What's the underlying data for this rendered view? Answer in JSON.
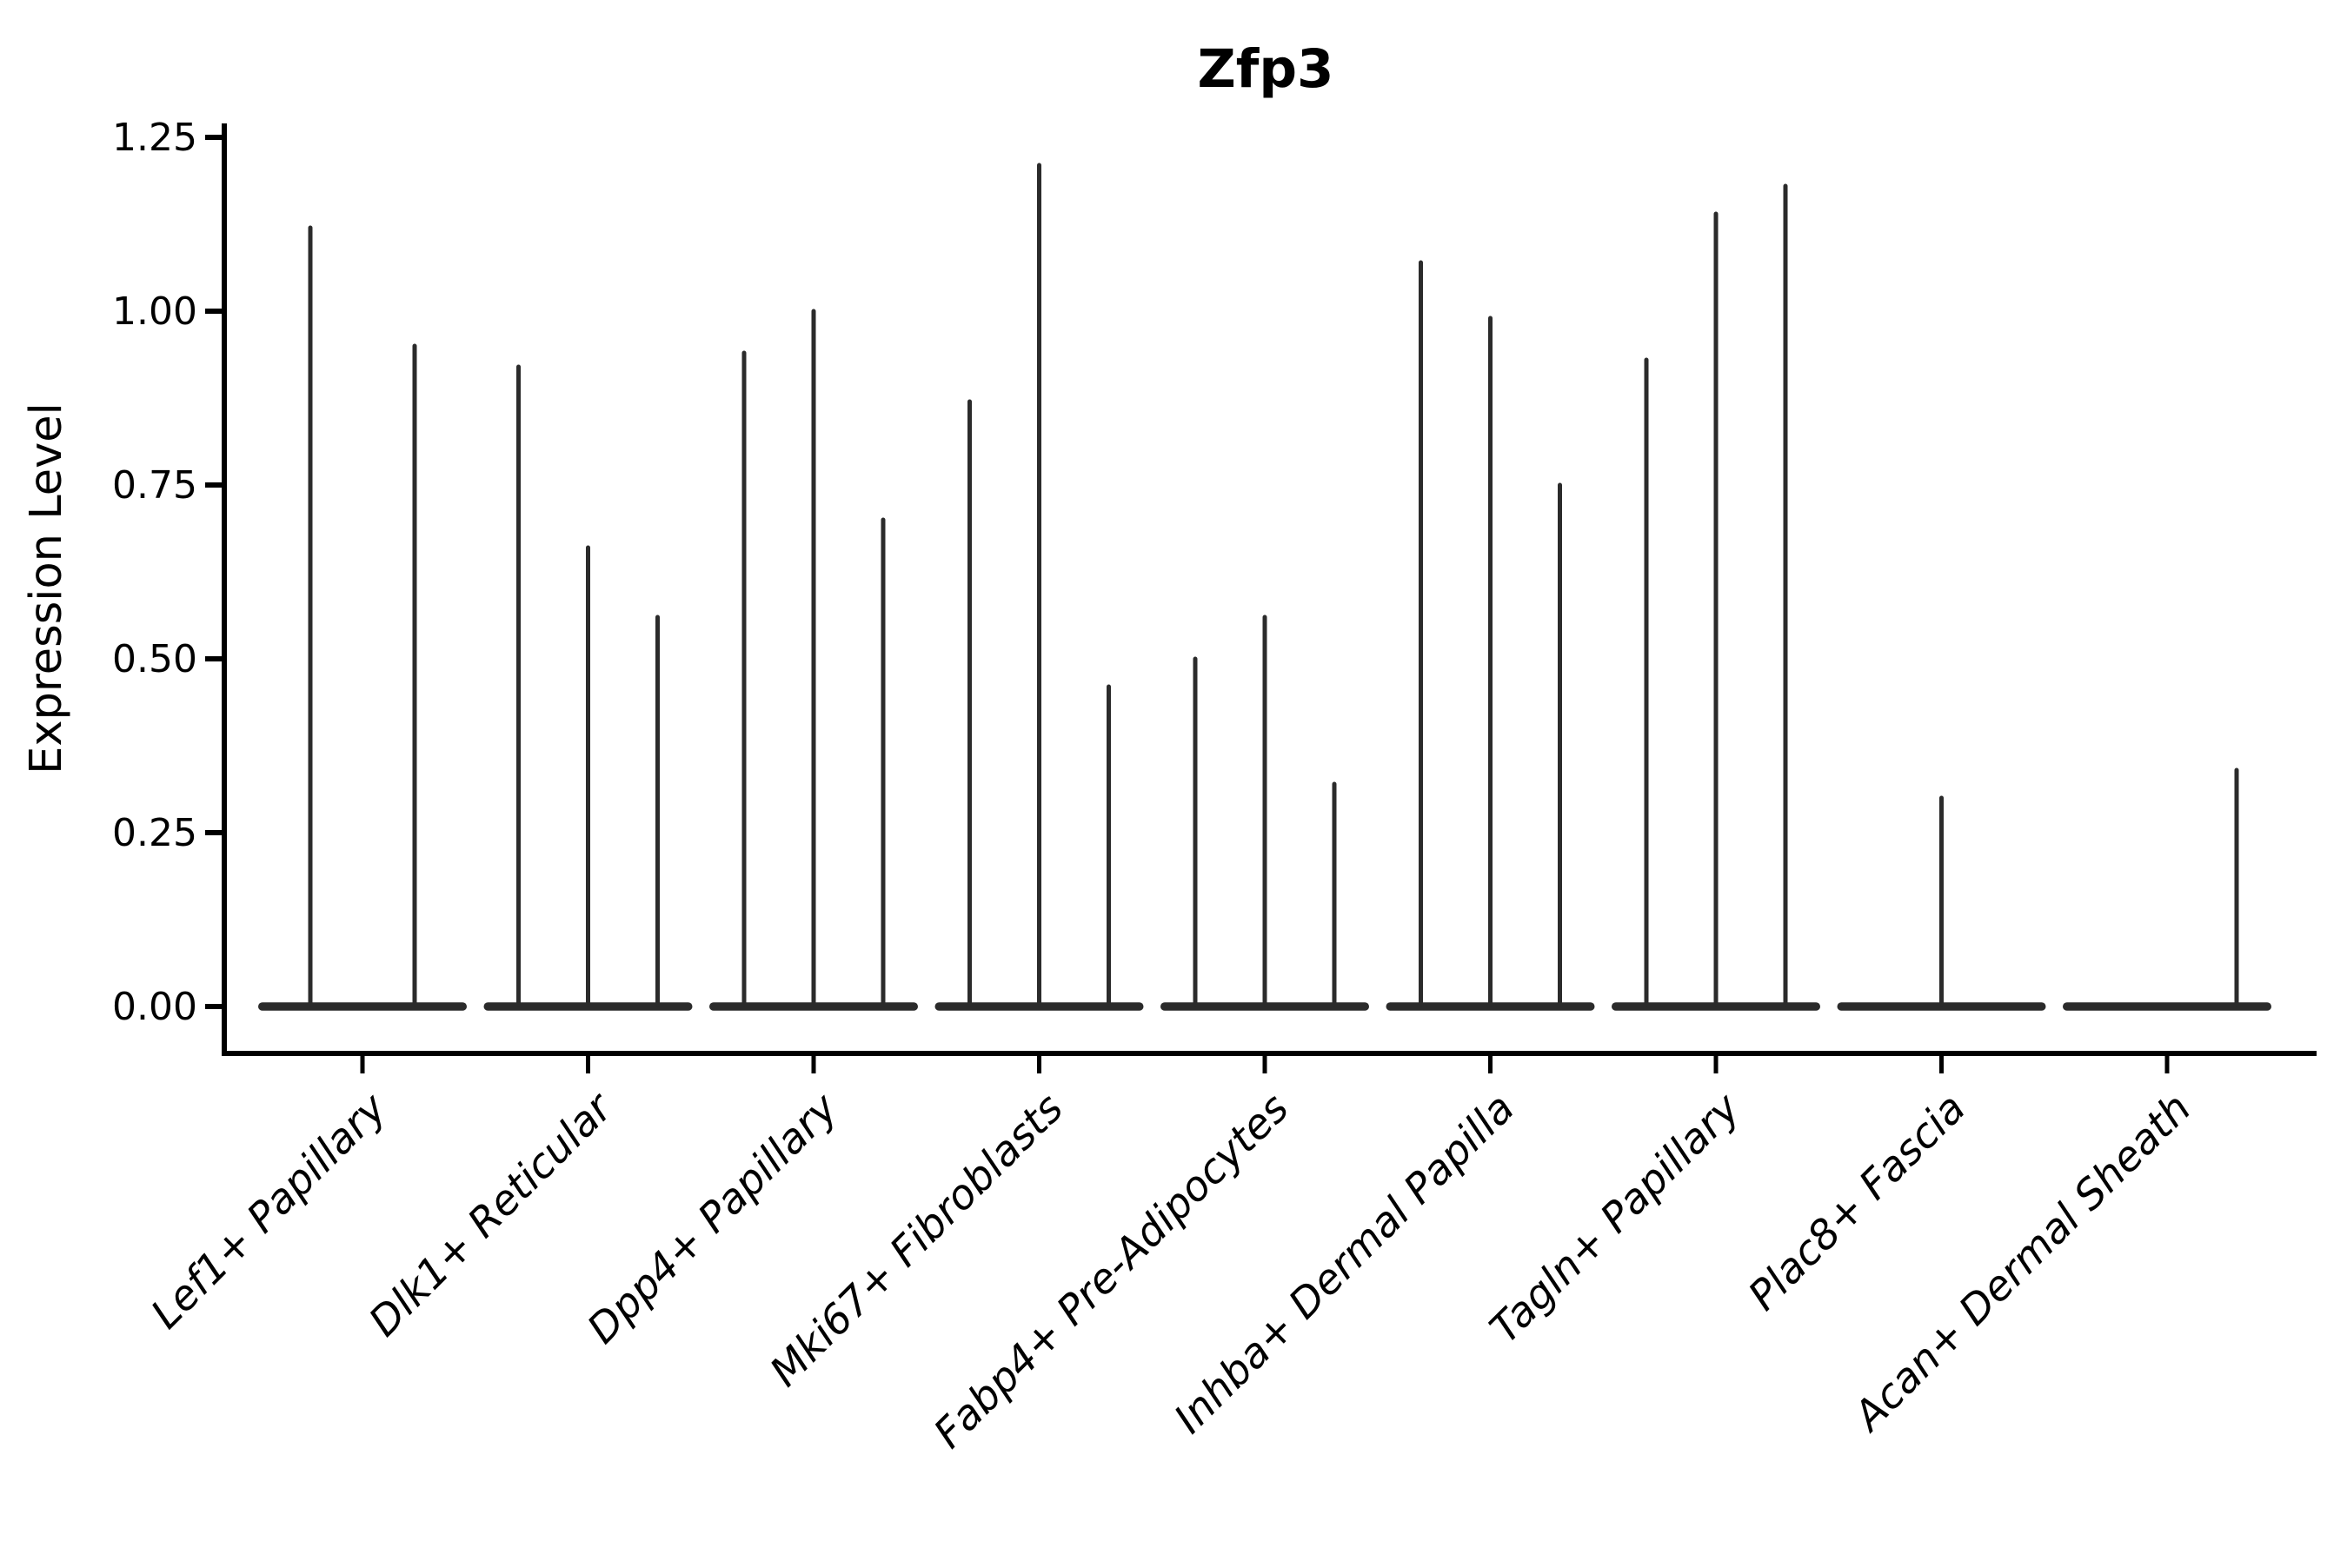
{
  "title": "Zfp3",
  "chart_data": {
    "type": "violin",
    "title": "Zfp3",
    "xlabel": "",
    "ylabel": "Expression Level",
    "ylim": [
      0,
      1.3
    ],
    "yticks": [
      0.0,
      0.25,
      0.5,
      0.75,
      1.0,
      1.25
    ],
    "ytick_labels": [
      "0.00",
      "0.25",
      "0.50",
      "0.75",
      "1.00",
      "1.25"
    ],
    "grid": false,
    "legend": false,
    "categories": [
      "Lef1+ Papillary",
      "Dlk1+ Reticular",
      "Dpp4+ Papillary",
      "Mki67+ Fibroblasts",
      "Fabp4+ Pre-Adipocytes",
      "Inhba+ Dermal Papilla",
      "Tagln+ Papillary",
      "Plac8+ Fascia",
      "Acan+ Dermal Sheath"
    ],
    "groups": [
      {
        "category": "Lef1+ Papillary",
        "violins": [
          {
            "slot": 0,
            "of": 2,
            "max": 1.12
          },
          {
            "slot": 1,
            "of": 2,
            "max": 0.95
          }
        ]
      },
      {
        "category": "Dlk1+ Reticular",
        "violins": [
          {
            "slot": 0,
            "of": 3,
            "max": 0.92
          },
          {
            "slot": 1,
            "of": 3,
            "max": 0.66
          },
          {
            "slot": 2,
            "of": 3,
            "max": 0.56
          }
        ]
      },
      {
        "category": "Dpp4+ Papillary",
        "violins": [
          {
            "slot": 0,
            "of": 3,
            "max": 0.94
          },
          {
            "slot": 1,
            "of": 3,
            "max": 1.0
          },
          {
            "slot": 2,
            "of": 3,
            "max": 0.7
          }
        ]
      },
      {
        "category": "Mki67+ Fibroblasts",
        "violins": [
          {
            "slot": 0,
            "of": 3,
            "max": 0.87
          },
          {
            "slot": 1,
            "of": 3,
            "max": 1.21
          },
          {
            "slot": 2,
            "of": 3,
            "max": 0.46
          }
        ]
      },
      {
        "category": "Fabp4+ Pre-Adipocytes",
        "violins": [
          {
            "slot": 0,
            "of": 3,
            "max": 0.5
          },
          {
            "slot": 1,
            "of": 3,
            "max": 0.56
          },
          {
            "slot": 2,
            "of": 3,
            "max": 0.32
          }
        ]
      },
      {
        "category": "Inhba+ Dermal Papilla",
        "violins": [
          {
            "slot": 0,
            "of": 3,
            "max": 1.07
          },
          {
            "slot": 1,
            "of": 3,
            "max": 0.99
          },
          {
            "slot": 2,
            "of": 3,
            "max": 0.75
          }
        ]
      },
      {
        "category": "Tagln+ Papillary",
        "violins": [
          {
            "slot": 0,
            "of": 3,
            "max": 0.93
          },
          {
            "slot": 1,
            "of": 3,
            "max": 1.14
          },
          {
            "slot": 2,
            "of": 3,
            "max": 1.18
          }
        ]
      },
      {
        "category": "Plac8+ Fascia",
        "violins": [
          {
            "slot": 1,
            "of": 3,
            "max": 0.3
          }
        ]
      },
      {
        "category": "Acan+ Dermal Sheath",
        "violins": [
          {
            "slot": 2,
            "of": 3,
            "max": 0.34
          }
        ]
      }
    ],
    "colors": {
      "violin": "#2b2b2b",
      "axis": "#000000",
      "text": "#000000",
      "background": "#ffffff"
    }
  }
}
